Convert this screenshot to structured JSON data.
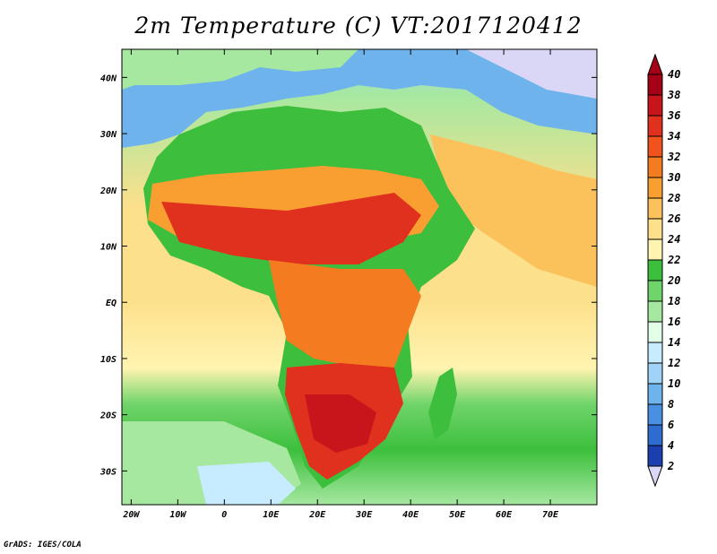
{
  "title": "2m Temperature (C) VT:2017120412",
  "credit": "GrADS: IGES/COLA",
  "map": {
    "lon_labels": [
      "20W",
      "10W",
      "0",
      "10E",
      "20E",
      "30E",
      "40E",
      "50E",
      "60E",
      "70E"
    ],
    "lat_labels": [
      "40N",
      "30N",
      "20N",
      "10N",
      "EQ",
      "10S",
      "20S",
      "30S"
    ],
    "lon_range": [
      -22,
      80
    ],
    "lat_range": [
      -36,
      45
    ]
  },
  "colorbar": {
    "labels": [
      "40",
      "38",
      "36",
      "34",
      "32",
      "30",
      "28",
      "26",
      "24",
      "22",
      "20",
      "18",
      "16",
      "14",
      "12",
      "10",
      "8",
      "6",
      "4",
      "2"
    ],
    "colors": [
      "#a50015",
      "#c8151b",
      "#e0301e",
      "#f0531d",
      "#f47b1f",
      "#f99f32",
      "#fbc15a",
      "#fde08c",
      "#fff4b0",
      "#3dbf3d",
      "#6fd46a",
      "#a6e8a0",
      "#e2ffe8",
      "#c8ecff",
      "#9fd3f7",
      "#6fb3ed",
      "#4a90e2",
      "#2f6cd0",
      "#1b3fae",
      "#12207a"
    ]
  }
}
